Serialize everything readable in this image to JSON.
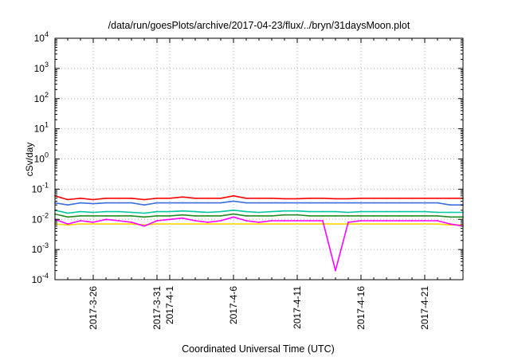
{
  "chart_data": {
    "type": "line",
    "title": "/data/run/goesPlots/archive/2017-04-23/flux/../bryn/31daysMoon.plot",
    "xlabel": "Coordinated Universal Time (UTC)",
    "ylabel": "cSv/day",
    "y_scale": "log",
    "ylim": [
      0.0001,
      10000
    ],
    "xlim": [
      "2017-03-23",
      "2017-04-24"
    ],
    "grid": true,
    "y_ticks": [
      {
        "value": 0.0001,
        "base": "10",
        "exp": "-4"
      },
      {
        "value": 0.001,
        "base": "10",
        "exp": "-3"
      },
      {
        "value": 0.01,
        "base": "10",
        "exp": "-2"
      },
      {
        "value": 0.1,
        "base": "10",
        "exp": "-1"
      },
      {
        "value": 1,
        "base": "10",
        "exp": "0"
      },
      {
        "value": 10,
        "base": "10",
        "exp": "1"
      },
      {
        "value": 100,
        "base": "10",
        "exp": "2"
      },
      {
        "value": 1000,
        "base": "10",
        "exp": "3"
      },
      {
        "value": 10000,
        "base": "10",
        "exp": "4"
      }
    ],
    "x_ticks": [
      {
        "date": "2017-03-26",
        "label": "2017-3-26"
      },
      {
        "date": "2017-03-31",
        "label": "2017-3-31"
      },
      {
        "date": "2017-04-01",
        "label": "2017-4-1"
      },
      {
        "date": "2017-04-06",
        "label": "2017-4-6"
      },
      {
        "date": "2017-04-11",
        "label": "2017-4-11"
      },
      {
        "date": "2017-04-16",
        "label": "2017-4-16"
      },
      {
        "date": "2017-04-21",
        "label": "2017-4-21"
      }
    ],
    "series": [
      {
        "color": "#ff0000",
        "x": [
          "2017-03-23",
          "2017-03-24",
          "2017-03-25",
          "2017-03-26",
          "2017-03-27",
          "2017-03-28",
          "2017-03-29",
          "2017-03-30",
          "2017-03-31",
          "2017-04-01",
          "2017-04-02",
          "2017-04-03",
          "2017-04-04",
          "2017-04-05",
          "2017-04-06",
          "2017-04-07",
          "2017-04-08",
          "2017-04-09",
          "2017-04-10",
          "2017-04-11",
          "2017-04-12",
          "2017-04-13",
          "2017-04-14",
          "2017-04-15",
          "2017-04-16",
          "2017-04-17",
          "2017-04-18",
          "2017-04-19",
          "2017-04-20",
          "2017-04-21",
          "2017-04-22",
          "2017-04-23",
          "2017-04-24"
        ],
        "values": [
          0.06,
          0.045,
          0.05,
          0.045,
          0.05,
          0.05,
          0.05,
          0.045,
          0.05,
          0.05,
          0.055,
          0.05,
          0.05,
          0.05,
          0.06,
          0.05,
          0.05,
          0.05,
          0.048,
          0.048,
          0.05,
          0.05,
          0.048,
          0.048,
          0.05,
          0.05,
          0.05,
          0.05,
          0.05,
          0.05,
          0.05,
          0.05,
          0.05
        ]
      },
      {
        "color": "#3b6fe0",
        "x": [
          "2017-03-23",
          "2017-03-24",
          "2017-03-25",
          "2017-03-26",
          "2017-03-27",
          "2017-03-28",
          "2017-03-29",
          "2017-03-30",
          "2017-03-31",
          "2017-04-01",
          "2017-04-02",
          "2017-04-03",
          "2017-04-04",
          "2017-04-05",
          "2017-04-06",
          "2017-04-07",
          "2017-04-08",
          "2017-04-09",
          "2017-04-10",
          "2017-04-11",
          "2017-04-12",
          "2017-04-13",
          "2017-04-14",
          "2017-04-15",
          "2017-04-16",
          "2017-04-17",
          "2017-04-18",
          "2017-04-19",
          "2017-04-20",
          "2017-04-21",
          "2017-04-22",
          "2017-04-23",
          "2017-04-24"
        ],
        "values": [
          0.035,
          0.03,
          0.035,
          0.033,
          0.035,
          0.035,
          0.035,
          0.03,
          0.035,
          0.035,
          0.035,
          0.035,
          0.035,
          0.035,
          0.04,
          0.035,
          0.035,
          0.035,
          0.035,
          0.035,
          0.035,
          0.035,
          0.035,
          0.035,
          0.035,
          0.035,
          0.035,
          0.035,
          0.035,
          0.035,
          0.035,
          0.03,
          0.03
        ]
      },
      {
        "color": "#00c8a0",
        "x": [
          "2017-03-23",
          "2017-03-24",
          "2017-03-25",
          "2017-03-26",
          "2017-03-27",
          "2017-03-28",
          "2017-03-29",
          "2017-03-30",
          "2017-03-31",
          "2017-04-01",
          "2017-04-02",
          "2017-04-03",
          "2017-04-04",
          "2017-04-05",
          "2017-04-06",
          "2017-04-07",
          "2017-04-08",
          "2017-04-09",
          "2017-04-10",
          "2017-04-11",
          "2017-04-12",
          "2017-04-13",
          "2017-04-14",
          "2017-04-15",
          "2017-04-16",
          "2017-04-17",
          "2017-04-18",
          "2017-04-19",
          "2017-04-20",
          "2017-04-21",
          "2017-04-22",
          "2017-04-23",
          "2017-04-24"
        ],
        "values": [
          0.02,
          0.016,
          0.018,
          0.017,
          0.018,
          0.018,
          0.017,
          0.016,
          0.018,
          0.018,
          0.019,
          0.018,
          0.017,
          0.018,
          0.02,
          0.018,
          0.017,
          0.018,
          0.019,
          0.019,
          0.018,
          0.018,
          0.018,
          0.017,
          0.018,
          0.018,
          0.018,
          0.018,
          0.018,
          0.018,
          0.017,
          0.017,
          0.017
        ]
      },
      {
        "color": "#228b22",
        "x": [
          "2017-03-23",
          "2017-03-24",
          "2017-03-25",
          "2017-03-26",
          "2017-03-27",
          "2017-03-28",
          "2017-03-29",
          "2017-03-30",
          "2017-03-31",
          "2017-04-01",
          "2017-04-02",
          "2017-04-03",
          "2017-04-04",
          "2017-04-05",
          "2017-04-06",
          "2017-04-07",
          "2017-04-08",
          "2017-04-09",
          "2017-04-10",
          "2017-04-11",
          "2017-04-12",
          "2017-04-13",
          "2017-04-14",
          "2017-04-15",
          "2017-04-16",
          "2017-04-17",
          "2017-04-18",
          "2017-04-19",
          "2017-04-20",
          "2017-04-21",
          "2017-04-22",
          "2017-04-23",
          "2017-04-24"
        ],
        "values": [
          0.015,
          0.012,
          0.013,
          0.013,
          0.013,
          0.013,
          0.013,
          0.012,
          0.013,
          0.013,
          0.014,
          0.013,
          0.013,
          0.013,
          0.015,
          0.013,
          0.013,
          0.013,
          0.014,
          0.014,
          0.013,
          0.013,
          0.013,
          0.013,
          0.013,
          0.013,
          0.013,
          0.013,
          0.013,
          0.013,
          0.013,
          0.012,
          0.012
        ]
      },
      {
        "color": "#ffd700",
        "x": [
          "2017-03-23",
          "2017-03-24",
          "2017-03-25",
          "2017-03-26",
          "2017-03-27",
          "2017-03-28",
          "2017-03-29",
          "2017-03-30",
          "2017-03-31",
          "2017-04-01",
          "2017-04-02",
          "2017-04-03",
          "2017-04-04",
          "2017-04-05",
          "2017-04-06",
          "2017-04-07",
          "2017-04-08",
          "2017-04-09",
          "2017-04-10",
          "2017-04-11",
          "2017-04-12",
          "2017-04-13",
          "2017-04-14",
          "2017-04-15",
          "2017-04-16",
          "2017-04-17",
          "2017-04-18",
          "2017-04-19",
          "2017-04-20",
          "2017-04-21",
          "2017-04-22",
          "2017-04-23",
          "2017-04-24"
        ],
        "values": [
          0.007,
          0.0065,
          0.007,
          0.007,
          0.007,
          0.007,
          0.007,
          0.0065,
          0.007,
          0.007,
          0.007,
          0.007,
          0.007,
          0.007,
          0.007,
          0.007,
          0.007,
          0.007,
          0.007,
          0.007,
          0.007,
          0.007,
          0.007,
          0.007,
          0.007,
          0.007,
          0.007,
          0.007,
          0.007,
          0.007,
          0.007,
          0.0065,
          0.0065
        ]
      },
      {
        "color": "#ff00ff",
        "x": [
          "2017-03-23",
          "2017-03-24",
          "2017-03-25",
          "2017-03-26",
          "2017-03-27",
          "2017-03-28",
          "2017-03-29",
          "2017-03-30",
          "2017-03-31",
          "2017-04-01",
          "2017-04-02",
          "2017-04-03",
          "2017-04-04",
          "2017-04-05",
          "2017-04-06",
          "2017-04-07",
          "2017-04-08",
          "2017-04-09",
          "2017-04-10",
          "2017-04-11",
          "2017-04-12",
          "2017-04-13",
          "2017-04-14",
          "2017-04-15",
          "2017-04-16",
          "2017-04-17",
          "2017-04-18",
          "2017-04-19",
          "2017-04-20",
          "2017-04-21",
          "2017-04-22",
          "2017-04-23",
          "2017-04-24"
        ],
        "values": [
          0.01,
          0.007,
          0.009,
          0.008,
          0.01,
          0.009,
          0.008,
          0.006,
          0.009,
          0.01,
          0.011,
          0.009,
          0.008,
          0.009,
          0.012,
          0.009,
          0.008,
          0.009,
          0.009,
          0.009,
          0.009,
          0.009,
          0.0002,
          0.008,
          0.009,
          0.009,
          0.009,
          0.009,
          0.009,
          0.009,
          0.009,
          0.007,
          0.006
        ]
      }
    ]
  }
}
